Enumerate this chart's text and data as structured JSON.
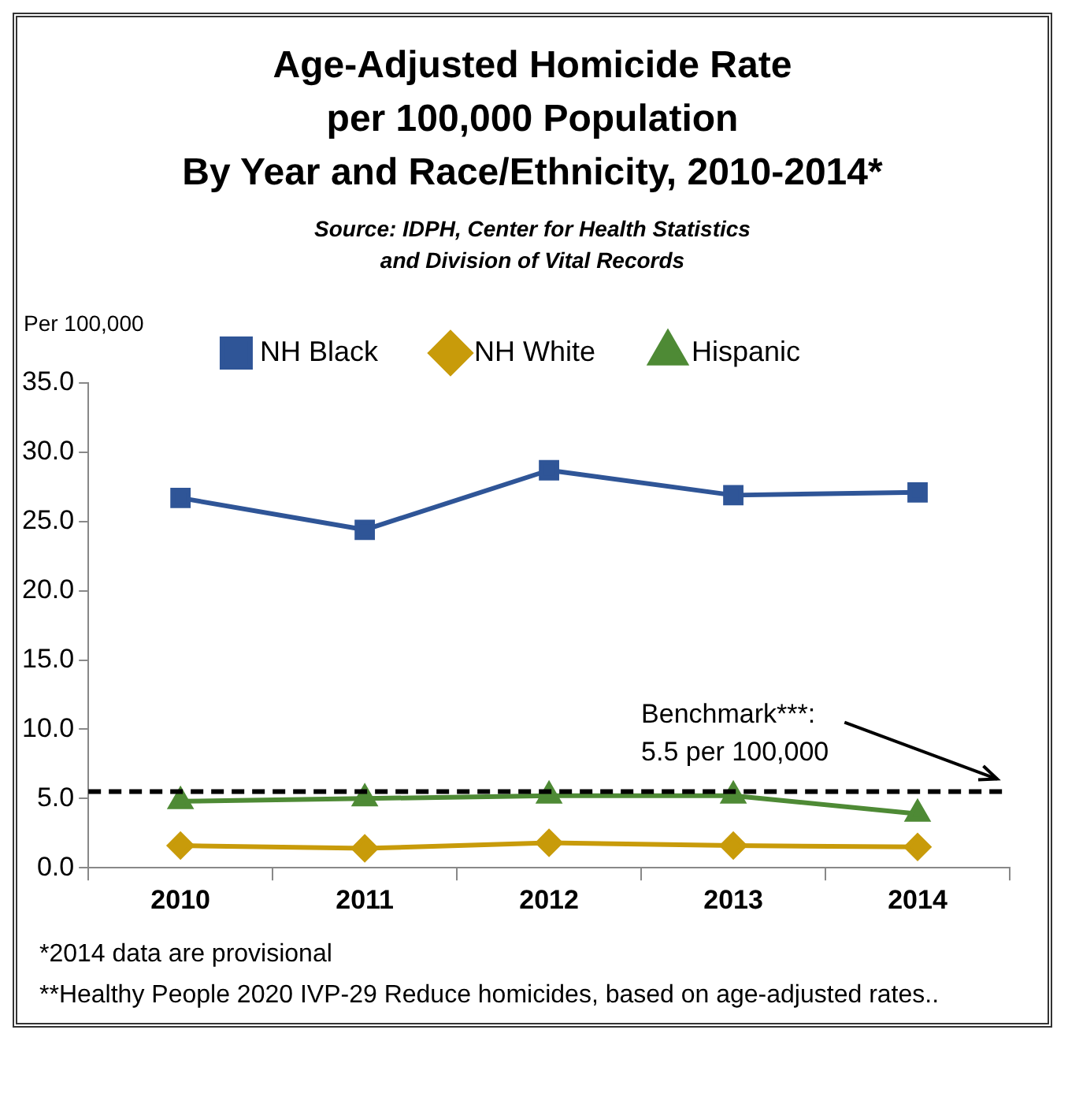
{
  "chart_data": {
    "type": "line",
    "title": "Age-Adjusted Homicide Rate\nper 100,000 Population\nBy Year and Race/Ethnicity, 2010-2014*",
    "subtitle": "Source: IDPH, Center for Health Statistics\nand Division of Vital Records",
    "ylabel": "Per 100,000",
    "categories": [
      "2010",
      "2011",
      "2012",
      "2013",
      "2014"
    ],
    "series": [
      {
        "name": "NH Black",
        "color": "#2f5597",
        "marker": "square",
        "values": [
          26.7,
          24.4,
          28.7,
          26.9,
          27.1
        ]
      },
      {
        "name": "NH White",
        "color": "#c89b0a",
        "marker": "diamond",
        "values": [
          1.6,
          1.4,
          1.8,
          1.6,
          1.5
        ]
      },
      {
        "name": "Hispanic",
        "color": "#4e8a35",
        "marker": "triangle",
        "values": [
          4.8,
          5.0,
          5.2,
          5.2,
          3.9
        ]
      }
    ],
    "ylim": [
      0,
      35
    ],
    "yticks": [
      {
        "value": 0,
        "label": "0.0"
      },
      {
        "value": 5,
        "label": "5.0"
      },
      {
        "value": 10,
        "label": "10.0"
      },
      {
        "value": 15,
        "label": "15.0"
      },
      {
        "value": 20,
        "label": "20.0"
      },
      {
        "value": 25,
        "label": "25.0"
      },
      {
        "value": 30,
        "label": "30.0"
      },
      {
        "value": 35,
        "label": "35.0"
      }
    ],
    "ref_lines": [
      {
        "axis": "y",
        "value": 5.5,
        "label": "Benchmark***: 5.5 per 100,000",
        "color": "#000000",
        "line_style": "dashed"
      }
    ],
    "legend": "top",
    "grid": false,
    "line_style": "solid",
    "annotations": [
      "*2014 data are provisional",
      "**Healthy People 2020 IVP-29 Reduce homicides, based on age-adjusted rates.."
    ]
  }
}
